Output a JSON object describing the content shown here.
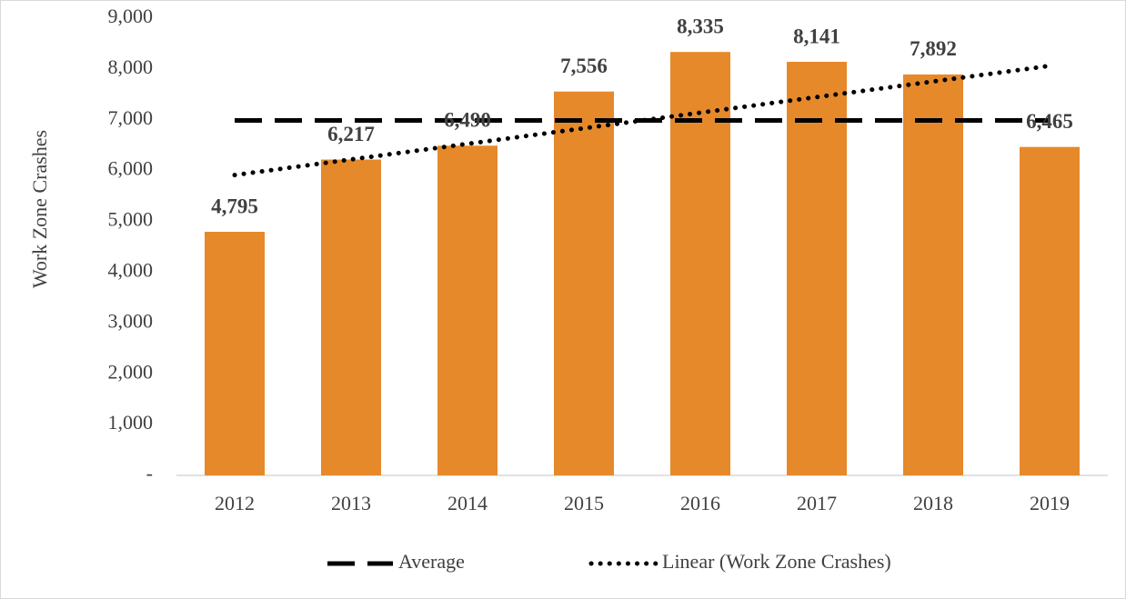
{
  "chart_data": {
    "type": "bar",
    "y_label": "Work Zone Crashes",
    "categories": [
      "2012",
      "2013",
      "2014",
      "2015",
      "2016",
      "2017",
      "2018",
      "2019"
    ],
    "values": [
      4795,
      6217,
      6490,
      7556,
      8335,
      8141,
      7892,
      6465
    ],
    "value_labels": [
      "4,795",
      "6,217",
      "6,490",
      "7,556",
      "8,335",
      "8,141",
      "7,892",
      "6,465"
    ],
    "color": "#e6892a",
    "series": [
      {
        "name": "Average",
        "color": "#000000",
        "style": "dashed",
        "values": [
          6986,
          6986,
          6986,
          6986,
          6986,
          6986,
          6986,
          6986
        ]
      },
      {
        "name": "Linear (Work Zone Crashes)",
        "color": "#000000",
        "style": "dotted",
        "values": [
          5912,
          6219,
          6526,
          6833,
          7140,
          7447,
          7754,
          8061
        ]
      }
    ],
    "ylim": [
      0,
      9000
    ],
    "yticks": [
      {
        "value": 0,
        "label": "-"
      },
      {
        "value": 1000,
        "label": "1,000"
      },
      {
        "value": 2000,
        "label": "2,000"
      },
      {
        "value": 3000,
        "label": "3,000"
      },
      {
        "value": 4000,
        "label": "4,000"
      },
      {
        "value": 5000,
        "label": "5,000"
      },
      {
        "value": 6000,
        "label": "6,000"
      },
      {
        "value": 7000,
        "label": "7,000"
      },
      {
        "value": 8000,
        "label": "8,000"
      },
      {
        "value": 9000,
        "label": "9,000"
      }
    ],
    "legend": "bottom"
  }
}
